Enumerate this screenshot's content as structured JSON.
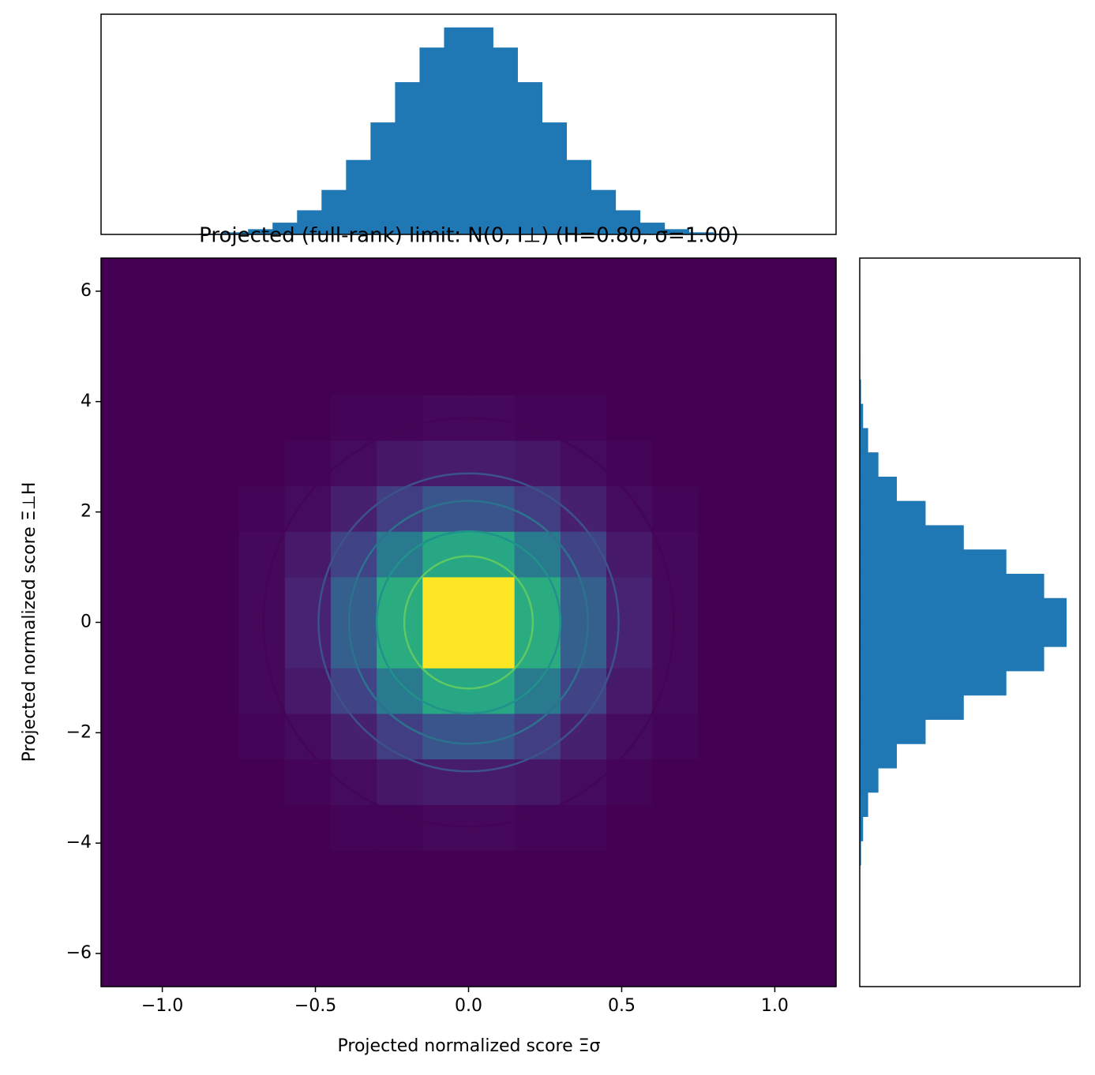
{
  "chart_data": [
    {
      "type": "heatmap",
      "title": "Projected (full-rank) limit: N(0, I⊥)  (H=0.80, σ=1.00)",
      "xlabel": "Projected normalized score Ξσ",
      "ylabel": "Projected normalized score Ξ⊥H",
      "colormap": "viridis",
      "clim": [
        0,
        91
      ],
      "xlim": [
        -1.2,
        1.2
      ],
      "ylim": [
        -6.6,
        6.6
      ],
      "xticks": [
        {
          "value": -1.0,
          "label": "−1.0"
        },
        {
          "value": -0.5,
          "label": "−0.5"
        },
        {
          "value": 0,
          "label": "0.0"
        },
        {
          "value": 0.5,
          "label": "0.5"
        },
        {
          "value": 1.0,
          "label": "1.0"
        }
      ],
      "yticks": [
        {
          "value": -6,
          "label": "−6"
        },
        {
          "value": -4,
          "label": "−4"
        },
        {
          "value": -2,
          "label": "−2"
        },
        0,
        2,
        4,
        6
      ],
      "xbins": [
        -1.2,
        -1.05,
        -0.9,
        -0.75,
        -0.6,
        -0.45,
        -0.3,
        -0.15,
        0,
        0.15,
        0.3,
        0.45,
        0.6,
        0.75,
        0.9,
        1.05,
        1.2
      ],
      "ybins": [
        -6.6,
        -5.775,
        -4.95,
        -4.125,
        -3.3,
        -2.475,
        -1.65,
        -0.825,
        0,
        0.825,
        1.65,
        2.475,
        3.3,
        4.125,
        4.95,
        5.775,
        6.6
      ],
      "counts": [
        [
          0,
          0,
          0,
          0,
          0,
          0,
          0,
          0,
          0,
          0,
          0,
          0,
          0,
          0,
          0,
          0
        ],
        [
          0,
          0,
          0,
          0,
          0,
          0,
          0,
          0,
          0,
          0,
          0,
          0,
          0,
          0,
          0,
          0
        ],
        [
          0,
          0,
          0,
          0,
          0,
          0,
          0,
          0,
          0,
          0,
          0,
          0,
          0,
          0,
          0,
          0
        ],
        [
          0,
          0,
          0,
          0,
          0,
          1,
          1,
          2,
          2,
          1,
          1,
          0,
          0,
          0,
          0,
          0
        ],
        [
          0,
          0,
          0,
          0,
          1,
          3,
          6,
          8,
          8,
          6,
          3,
          1,
          0,
          0,
          0,
          0
        ],
        [
          0,
          0,
          0,
          1,
          3,
          9,
          19,
          27,
          27,
          19,
          9,
          3,
          1,
          0,
          0,
          0
        ],
        [
          0,
          0,
          0,
          2,
          7,
          21,
          42,
          61,
          61,
          42,
          21,
          7,
          2,
          0,
          0,
          0
        ],
        [
          0,
          0,
          0,
          2,
          10,
          31,
          63,
          91,
          91,
          63,
          31,
          10,
          2,
          0,
          0,
          0
        ],
        [
          0,
          0,
          0,
          2,
          10,
          31,
          63,
          91,
          91,
          63,
          31,
          10,
          2,
          0,
          0,
          0
        ],
        [
          0,
          0,
          0,
          2,
          7,
          21,
          42,
          61,
          61,
          42,
          21,
          7,
          2,
          0,
          0,
          0
        ],
        [
          0,
          0,
          0,
          1,
          3,
          9,
          19,
          27,
          27,
          19,
          9,
          3,
          1,
          0,
          0,
          0
        ],
        [
          0,
          0,
          0,
          0,
          1,
          3,
          6,
          8,
          8,
          6,
          3,
          1,
          0,
          0,
          0,
          0
        ],
        [
          0,
          0,
          0,
          0,
          0,
          1,
          1,
          2,
          2,
          1,
          1,
          0,
          0,
          0,
          0,
          0
        ],
        [
          0,
          0,
          0,
          0,
          0,
          0,
          0,
          0,
          0,
          0,
          0,
          0,
          0,
          0,
          0,
          0
        ],
        [
          0,
          0,
          0,
          0,
          0,
          0,
          0,
          0,
          0,
          0,
          0,
          0,
          0,
          0,
          0,
          0
        ],
        [
          0,
          0,
          0,
          0,
          0,
          0,
          0,
          0,
          0,
          0,
          0,
          0,
          0,
          0,
          0,
          0
        ]
      ],
      "contours": [
        {
          "rx": 0.67,
          "ry": 3.7,
          "color": "#450457"
        },
        {
          "rx": 0.49,
          "ry": 2.7,
          "color": "#3b528b"
        },
        {
          "rx": 0.39,
          "ry": 2.2,
          "color": "#2c728e"
        },
        {
          "rx": 0.3,
          "ry": 1.65,
          "color": "#21918c"
        },
        {
          "rx": 0.21,
          "ry": 1.2,
          "color": "#5ec962"
        },
        {
          "rx": 0.095,
          "ry": 0.53,
          "color": "#fde725"
        }
      ]
    },
    {
      "type": "histogram",
      "orientation": "vertical",
      "color": "#1f77b4",
      "xlim": [
        -1.2,
        1.2
      ],
      "ylim": [
        0,
        1050
      ],
      "bins": [
        -1.2,
        -1.12,
        -1.04,
        -0.96,
        -0.88,
        -0.8,
        -0.72,
        -0.64,
        -0.56,
        -0.48,
        -0.4,
        -0.32,
        -0.24,
        -0.16,
        -0.08,
        0,
        0.08,
        0.16,
        0.24,
        0.32,
        0.4,
        0.48,
        0.56,
        0.64,
        0.72,
        0.8,
        0.88,
        0.96,
        1.04,
        1.12,
        1.2
      ],
      "values": [
        0,
        0,
        0,
        1,
        4,
        10,
        25,
        56,
        115,
        212,
        355,
        534,
        726,
        891,
        987,
        987,
        891,
        726,
        534,
        355,
        212,
        115,
        56,
        25,
        10,
        4,
        1,
        0,
        0,
        0
      ]
    },
    {
      "type": "histogram",
      "orientation": "horizontal",
      "color": "#1f77b4",
      "xlim": [
        0,
        1050
      ],
      "ylim": [
        -6.6,
        6.6
      ],
      "bins": [
        -6.6,
        -6.16,
        -5.72,
        -5.28,
        -4.84,
        -4.4,
        -3.96,
        -3.52,
        -3.08,
        -2.64,
        -2.2,
        -1.76,
        -1.32,
        -0.88,
        -0.44,
        0,
        0.44,
        0.88,
        1.32,
        1.76,
        2.2,
        2.64,
        3.08,
        3.52,
        3.96,
        4.4,
        4.84,
        5.28,
        5.72,
        6.16,
        6.6
      ],
      "values": [
        0,
        0,
        0,
        1,
        2,
        6,
        16,
        40,
        89,
        177,
        314,
        496,
        699,
        879,
        986,
        986,
        879,
        699,
        496,
        314,
        177,
        89,
        40,
        16,
        6,
        2,
        1,
        0,
        0,
        0
      ]
    }
  ]
}
